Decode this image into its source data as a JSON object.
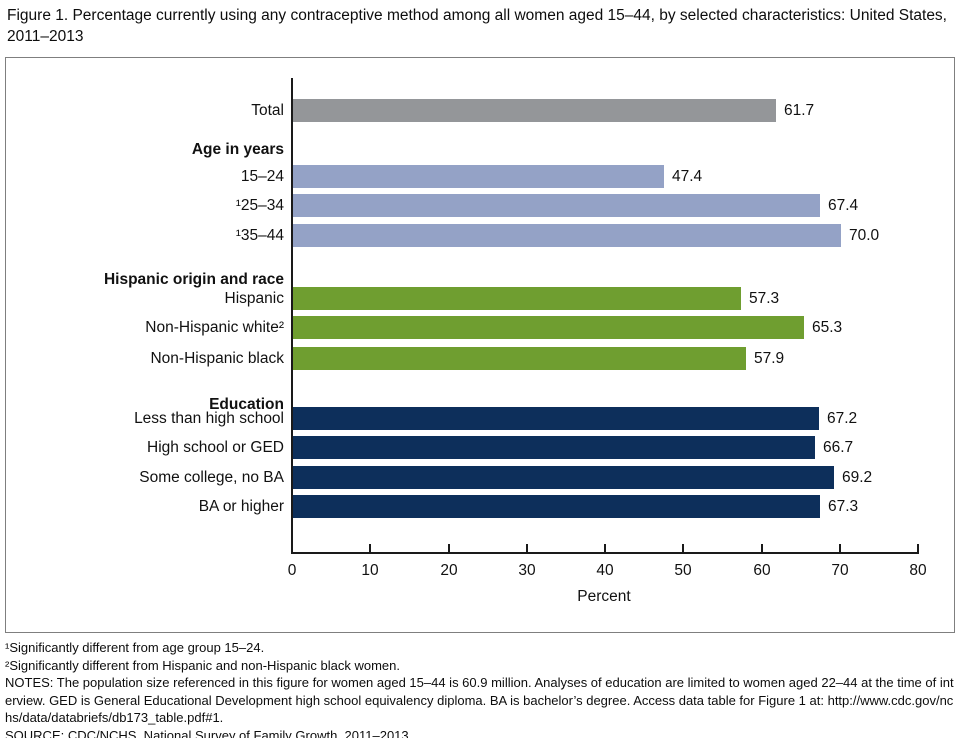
{
  "title": "Figure 1. Percentage currently using any contraceptive method among all women aged 15–44, by selected characteristics: United States, 2011–2013",
  "chart_data": {
    "type": "bar",
    "orientation": "horizontal",
    "title": "Percentage currently using any contraceptive method among all women aged 15–44, by selected characteristics: United States, 2011–2013",
    "xlabel": "Percent",
    "ylabel": "",
    "xlim": [
      0,
      80
    ],
    "xticks": [
      0,
      10,
      20,
      30,
      40,
      50,
      60,
      70,
      80
    ],
    "grid": false,
    "legend": "none",
    "colors": {
      "total": "#949699",
      "age": "#94A2C6",
      "race": "#6F9E30",
      "education": "#0D2F5B"
    },
    "rows": [
      {
        "kind": "bar",
        "label": "Total",
        "value": 61.7,
        "display": "61.7",
        "color_key": "total"
      },
      {
        "kind": "header",
        "label": "Age in years"
      },
      {
        "kind": "bar",
        "label": "15–24",
        "value": 47.4,
        "display": "47.4",
        "color_key": "age"
      },
      {
        "kind": "bar",
        "label": "¹25–34",
        "value": 67.4,
        "display": "67.4",
        "color_key": "age"
      },
      {
        "kind": "bar",
        "label": "¹35–44",
        "value": 70.0,
        "display": "70.0",
        "color_key": "age"
      },
      {
        "kind": "header",
        "label": "Hispanic origin and race"
      },
      {
        "kind": "bar",
        "label": "Hispanic",
        "value": 57.3,
        "display": "57.3",
        "color_key": "race"
      },
      {
        "kind": "bar",
        "label": "Non-Hispanic white²",
        "value": 65.3,
        "display": "65.3",
        "color_key": "race"
      },
      {
        "kind": "bar",
        "label": "Non-Hispanic black",
        "value": 57.9,
        "display": "57.9",
        "color_key": "race"
      },
      {
        "kind": "header",
        "label": "Education"
      },
      {
        "kind": "bar",
        "label": "Less than high school",
        "value": 67.2,
        "display": "67.2",
        "color_key": "education"
      },
      {
        "kind": "bar",
        "label": "High school or GED",
        "value": 66.7,
        "display": "66.7",
        "color_key": "education"
      },
      {
        "kind": "bar",
        "label": "Some college, no BA",
        "value": 69.2,
        "display": "69.2",
        "color_key": "education"
      },
      {
        "kind": "bar",
        "label": "BA or higher",
        "value": 67.3,
        "display": "67.3",
        "color_key": "education"
      }
    ]
  },
  "footnotes": {
    "fn1": "¹Significantly different from age group 15–24.",
    "fn2": "²Significantly different from Hispanic and non-Hispanic black women.",
    "notes": "NOTES: The population size referenced in this figure for women aged 15–44 is 60.9 million. Analyses of education are limited to women aged 22–44 at the time of interview. GED is General Educational Development high school equivalency diploma. BA is bachelor’s degree. Access data table for Figure 1 at: http://www.cdc.gov/nchs/data/databriefs/db173_table.pdf#1.",
    "source": "SOURCE: CDC/NCHS, National Survey of Family Growth, 2011–2013."
  }
}
